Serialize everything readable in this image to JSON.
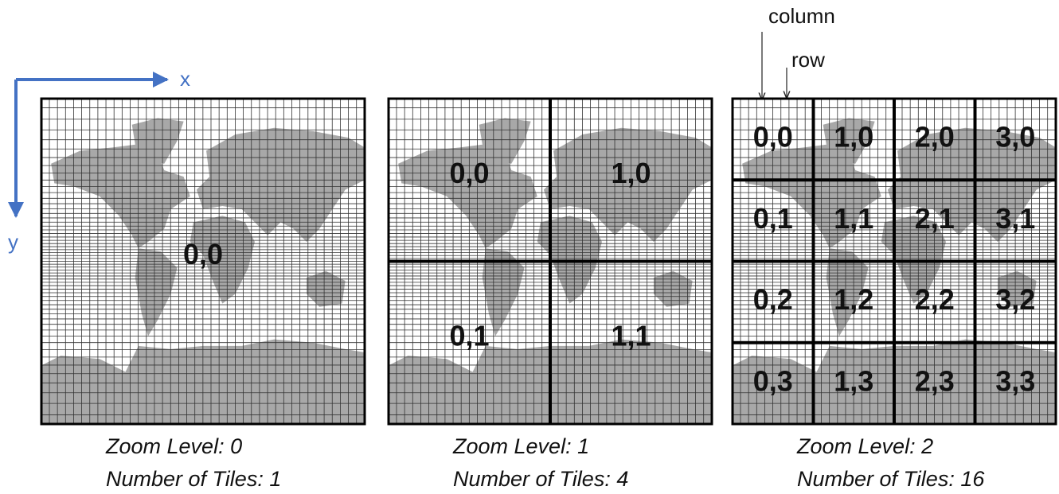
{
  "axes": {
    "x": "x",
    "y": "y"
  },
  "annotations": {
    "column": "column",
    "row": "row"
  },
  "panels": [
    {
      "tiles": [
        [
          "0,0"
        ]
      ],
      "zoom_label": "Zoom Level: 0",
      "tiles_label": "Number of Tiles: 1"
    },
    {
      "tiles": [
        [
          "0,0",
          "1,0"
        ],
        [
          "0,1",
          "1,1"
        ]
      ],
      "zoom_label": "Zoom Level: 1",
      "tiles_label": "Number of Tiles: 4"
    },
    {
      "tiles": [
        [
          "0,0",
          "1,0",
          "2,0",
          "3,0"
        ],
        [
          "0,1",
          "1,1",
          "2,1",
          "3,1"
        ],
        [
          "0,2",
          "1,2",
          "2,2",
          "3,2"
        ],
        [
          "0,3",
          "1,3",
          "2,3",
          "3,3"
        ]
      ],
      "zoom_label": "Zoom Level: 2",
      "tiles_label": "Number of Tiles: 16"
    }
  ]
}
